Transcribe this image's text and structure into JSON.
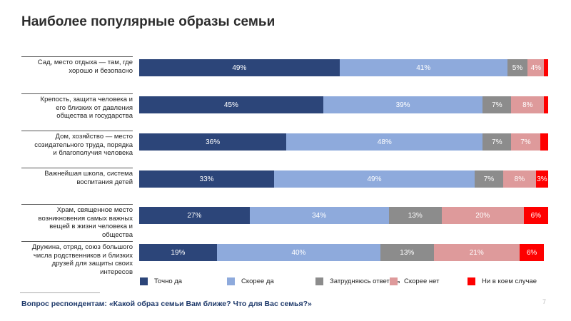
{
  "chart_data": {
    "type": "bar",
    "orientation": "horizontal",
    "stacked": true,
    "title": "Наиболее популярные образы семьи",
    "categories": [
      "Сад, место отдыха — там, где\nхорошо и безопасно",
      "Крепость, защита человека и\nего близких от давления\nобщества и государства",
      "Дом, хозяйство — место\nсозидательного труда, порядка\nи благополучия человека",
      "Важнейшая школа, система\nвоспитания детей",
      "Храм, священное место\nвозникновения самых важных\nвещей в жизни человека и\nобщества",
      "Дружина, отряд, союз большого\nчисла родственников и близких\nдрузей для защиты своих\nинтересов"
    ],
    "series": [
      {
        "name": "Точно да",
        "color": "#2c4579",
        "values": [
          49,
          45,
          36,
          33,
          27,
          19
        ],
        "value_labels": [
          "49%",
          "45%",
          "36%",
          "33%",
          "27%",
          "19%"
        ]
      },
      {
        "name": "Скорее да",
        "color": "#8eaadc",
        "values": [
          41,
          39,
          48,
          49,
          34,
          40
        ],
        "value_labels": [
          "41%",
          "39%",
          "48%",
          "49%",
          "34%",
          "40%"
        ]
      },
      {
        "name": "Затрудняюсь ответить",
        "color": "#8c8c8c",
        "values": [
          5,
          7,
          7,
          7,
          13,
          13
        ],
        "value_labels": [
          "5%",
          "7%",
          "7%",
          "7%",
          "13%",
          "13%"
        ]
      },
      {
        "name": "Скорее нет",
        "color": "#de9a9b",
        "values": [
          4,
          8,
          7,
          8,
          20,
          21
        ],
        "value_labels": [
          "4%",
          "8%",
          "7%",
          "8%",
          "20%",
          "21%"
        ]
      },
      {
        "name": "Ни в коем случае",
        "color": "#fe0000",
        "values": [
          1,
          1,
          2,
          3,
          6,
          6
        ],
        "value_labels": [
          null,
          null,
          null,
          "3%",
          "6%",
          "6%"
        ]
      }
    ],
    "xlim": [
      0,
      100
    ],
    "footnote": "Вопрос респондентам: «Какой образ семьи Вам ближе? Что для Вас семья?»"
  },
  "page_number": "7"
}
